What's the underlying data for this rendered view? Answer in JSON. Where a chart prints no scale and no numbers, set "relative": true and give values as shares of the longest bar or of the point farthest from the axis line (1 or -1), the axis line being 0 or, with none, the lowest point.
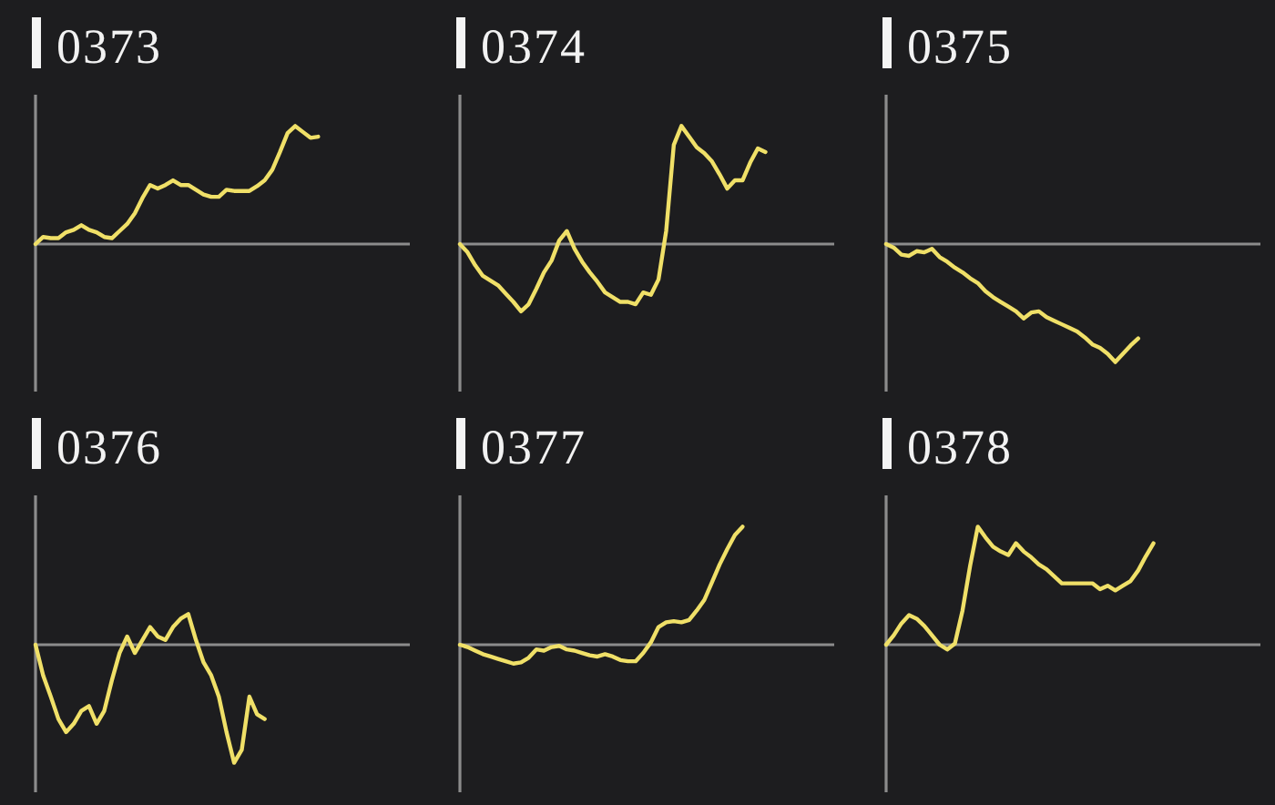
{
  "chart_data": [
    {
      "type": "line",
      "title": "0373",
      "relative": true,
      "color": "#f0e068",
      "categories": [
        null,
        null,
        null,
        null,
        null,
        null,
        null,
        null,
        null,
        null,
        null,
        null,
        null,
        null,
        null,
        null,
        null,
        null,
        null,
        null,
        null,
        null,
        null,
        null,
        null,
        null,
        null,
        null,
        null,
        null,
        null,
        null,
        null,
        null,
        null,
        null,
        null,
        null,
        null,
        null,
        null,
        null,
        null,
        null,
        null,
        null,
        null,
        null,
        null,
        null
      ],
      "values": [
        0,
        0.06,
        0.05,
        0.05,
        0.1,
        0.12,
        0.16,
        0.12,
        0.1,
        0.06,
        0.05,
        0.11,
        0.17,
        0.26,
        0.39,
        0.5,
        0.47,
        0.5,
        0.54,
        0.5,
        0.5,
        0.46,
        0.42,
        0.4,
        0.4,
        0.46,
        0.45,
        0.45,
        0.45,
        0.49,
        0.54,
        0.63,
        0.78,
        0.94,
        1,
        0.95,
        0.9,
        0.91,
        null,
        null,
        null,
        null,
        null,
        null,
        null,
        null,
        null,
        null,
        null,
        null
      ]
    },
    {
      "type": "line",
      "title": "0374",
      "relative": true,
      "color": "#f0e068",
      "categories": [
        null,
        null,
        null,
        null,
        null,
        null,
        null,
        null,
        null,
        null,
        null,
        null,
        null,
        null,
        null,
        null,
        null,
        null,
        null,
        null,
        null,
        null,
        null,
        null,
        null,
        null,
        null,
        null,
        null,
        null,
        null,
        null,
        null,
        null,
        null,
        null,
        null,
        null,
        null,
        null,
        null,
        null,
        null,
        null,
        null,
        null,
        null,
        null,
        null,
        null
      ],
      "values": [
        0,
        -0.07,
        -0.18,
        -0.27,
        -0.31,
        -0.35,
        -0.42,
        -0.49,
        -0.57,
        -0.51,
        -0.38,
        -0.24,
        -0.14,
        0.03,
        0.11,
        -0.04,
        -0.15,
        -0.24,
        -0.32,
        -0.41,
        -0.45,
        -0.49,
        -0.49,
        -0.51,
        -0.41,
        -0.43,
        -0.3,
        0.11,
        0.84,
        1,
        0.91,
        0.82,
        0.77,
        0.7,
        0.59,
        0.47,
        0.54,
        0.54,
        0.69,
        0.81,
        0.78,
        null,
        null,
        null,
        null,
        null,
        null,
        null,
        null,
        null
      ]
    },
    {
      "type": "line",
      "title": "0375",
      "relative": true,
      "color": "#f0e068",
      "categories": [
        null,
        null,
        null,
        null,
        null,
        null,
        null,
        null,
        null,
        null,
        null,
        null,
        null,
        null,
        null,
        null,
        null,
        null,
        null,
        null,
        null,
        null,
        null,
        null,
        null,
        null,
        null,
        null,
        null,
        null,
        null,
        null,
        null,
        null,
        null,
        null,
        null,
        null,
        null,
        null,
        null,
        null,
        null,
        null,
        null,
        null,
        null,
        null,
        null,
        null
      ],
      "values": [
        0,
        -0.03,
        -0.09,
        -0.1,
        -0.06,
        -0.07,
        -0.04,
        -0.11,
        -0.15,
        -0.2,
        -0.24,
        -0.29,
        -0.33,
        -0.4,
        -0.45,
        -0.49,
        -0.53,
        -0.57,
        -0.63,
        -0.58,
        -0.57,
        -0.62,
        -0.65,
        -0.68,
        -0.71,
        -0.74,
        -0.79,
        -0.85,
        -0.88,
        -0.93,
        -1,
        -0.93,
        -0.86,
        -0.8,
        null,
        null,
        null,
        null,
        null,
        null,
        null,
        null,
        null,
        null,
        null,
        null,
        null,
        null,
        null,
        null
      ]
    },
    {
      "type": "line",
      "title": "0376",
      "relative": true,
      "color": "#f0e068",
      "categories": [
        null,
        null,
        null,
        null,
        null,
        null,
        null,
        null,
        null,
        null,
        null,
        null,
        null,
        null,
        null,
        null,
        null,
        null,
        null,
        null,
        null,
        null,
        null,
        null,
        null,
        null,
        null,
        null,
        null,
        null,
        null,
        null,
        null,
        null,
        null,
        null,
        null,
        null,
        null,
        null,
        null,
        null,
        null,
        null,
        null,
        null,
        null,
        null,
        null,
        null
      ],
      "values": [
        0,
        -0.26,
        -0.44,
        -0.63,
        -0.74,
        -0.67,
        -0.56,
        -0.52,
        -0.67,
        -0.56,
        -0.3,
        -0.07,
        0.07,
        -0.07,
        0.04,
        0.15,
        0.07,
        0.04,
        0.15,
        0.22,
        0.26,
        0.04,
        -0.15,
        -0.26,
        -0.44,
        -0.74,
        -1,
        -0.89,
        -0.44,
        -0.59,
        -0.63,
        null,
        null,
        null,
        null,
        null,
        null,
        null,
        null,
        null,
        null,
        null,
        null,
        null,
        null,
        null,
        null,
        null,
        null,
        null
      ]
    },
    {
      "type": "line",
      "title": "0377",
      "relative": true,
      "color": "#f0e068",
      "categories": [
        null,
        null,
        null,
        null,
        null,
        null,
        null,
        null,
        null,
        null,
        null,
        null,
        null,
        null,
        null,
        null,
        null,
        null,
        null,
        null,
        null,
        null,
        null,
        null,
        null,
        null,
        null,
        null,
        null,
        null,
        null,
        null,
        null,
        null,
        null,
        null,
        null,
        null,
        null,
        null,
        null,
        null,
        null,
        null,
        null,
        null,
        null,
        null,
        null,
        null
      ],
      "values": [
        0,
        -0.02,
        -0.05,
        -0.08,
        -0.1,
        -0.12,
        -0.14,
        -0.16,
        -0.15,
        -0.11,
        -0.04,
        -0.05,
        -0.02,
        -0.01,
        -0.04,
        -0.05,
        -0.07,
        -0.09,
        -0.1,
        -0.08,
        -0.1,
        -0.13,
        -0.14,
        -0.14,
        -0.07,
        0.02,
        0.15,
        0.19,
        0.2,
        0.19,
        0.21,
        0.29,
        0.38,
        0.53,
        0.68,
        0.81,
        0.93,
        1,
        null,
        null,
        null,
        null,
        null,
        null,
        null,
        null,
        null,
        null,
        null,
        null
      ]
    },
    {
      "type": "line",
      "title": "0378",
      "relative": true,
      "color": "#f0e068",
      "categories": [
        null,
        null,
        null,
        null,
        null,
        null,
        null,
        null,
        null,
        null,
        null,
        null,
        null,
        null,
        null,
        null,
        null,
        null,
        null,
        null,
        null,
        null,
        null,
        null,
        null,
        null,
        null,
        null,
        null,
        null,
        null,
        null,
        null,
        null,
        null,
        null,
        null,
        null,
        null,
        null,
        null,
        null,
        null,
        null,
        null,
        null,
        null,
        null,
        null,
        null
      ],
      "values": [
        0,
        0.08,
        0.18,
        0.25,
        0.22,
        0.16,
        0.08,
        0,
        -0.04,
        0.01,
        0.29,
        0.67,
        1,
        0.91,
        0.83,
        0.79,
        0.76,
        0.86,
        0.79,
        0.74,
        0.68,
        0.64,
        0.58,
        0.52,
        0.52,
        0.52,
        0.52,
        0.52,
        0.47,
        0.5,
        0.46,
        0.5,
        0.54,
        0.63,
        0.75,
        0.86,
        null,
        null,
        null,
        null,
        null,
        null,
        null,
        null,
        null,
        null,
        null,
        null,
        null,
        null
      ]
    }
  ]
}
